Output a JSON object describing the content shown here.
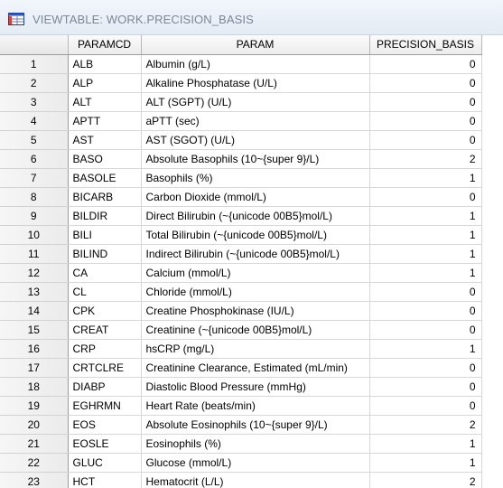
{
  "window": {
    "title": "VIEWTABLE: WORK.PRECISION_BASIS",
    "icon": "viewtable-grid-icon"
  },
  "table": {
    "columns": [
      "PARAMCD",
      "PARAM",
      "PRECISION_BASIS"
    ],
    "rows": [
      {
        "n": "1",
        "paramcd": "ALB",
        "param": "Albumin (g/L)",
        "basis": "0"
      },
      {
        "n": "2",
        "paramcd": "ALP",
        "param": "Alkaline Phosphatase (U/L)",
        "basis": "0"
      },
      {
        "n": "3",
        "paramcd": "ALT",
        "param": "ALT (SGPT) (U/L)",
        "basis": "0"
      },
      {
        "n": "4",
        "paramcd": "APTT",
        "param": "aPTT (sec)",
        "basis": "0"
      },
      {
        "n": "5",
        "paramcd": "AST",
        "param": "AST (SGOT) (U/L)",
        "basis": "0"
      },
      {
        "n": "6",
        "paramcd": "BASO",
        "param": "Absolute Basophils (10~{super 9}/L)",
        "basis": "2"
      },
      {
        "n": "7",
        "paramcd": "BASOLE",
        "param": "Basophils (%)",
        "basis": "1"
      },
      {
        "n": "8",
        "paramcd": "BICARB",
        "param": "Carbon Dioxide (mmol/L)",
        "basis": "0"
      },
      {
        "n": "9",
        "paramcd": "BILDIR",
        "param": "Direct Bilirubin (~{unicode 00B5}mol/L)",
        "basis": "1"
      },
      {
        "n": "10",
        "paramcd": "BILI",
        "param": "Total Bilirubin (~{unicode 00B5}mol/L)",
        "basis": "1"
      },
      {
        "n": "11",
        "paramcd": "BILIND",
        "param": "Indirect Bilirubin (~{unicode 00B5}mol/L)",
        "basis": "1"
      },
      {
        "n": "12",
        "paramcd": "CA",
        "param": "Calcium (mmol/L)",
        "basis": "1"
      },
      {
        "n": "13",
        "paramcd": "CL",
        "param": "Chloride (mmol/L)",
        "basis": "0"
      },
      {
        "n": "14",
        "paramcd": "CPK",
        "param": "Creatine Phosphokinase (IU/L)",
        "basis": "0"
      },
      {
        "n": "15",
        "paramcd": "CREAT",
        "param": "Creatinine (~{unicode 00B5}mol/L)",
        "basis": "0"
      },
      {
        "n": "16",
        "paramcd": "CRP",
        "param": "hsCRP (mg/L)",
        "basis": "1"
      },
      {
        "n": "17",
        "paramcd": "CRTCLRE",
        "param": "Creatinine Clearance, Estimated (mL/min)",
        "basis": "0"
      },
      {
        "n": "18",
        "paramcd": "DIABP",
        "param": "Diastolic Blood Pressure (mmHg)",
        "basis": "0"
      },
      {
        "n": "19",
        "paramcd": "EGHRMN",
        "param": "Heart Rate (beats/min)",
        "basis": "0"
      },
      {
        "n": "20",
        "paramcd": "EOS",
        "param": "Absolute Eosinophils (10~{super 9}/L)",
        "basis": "2"
      },
      {
        "n": "21",
        "paramcd": "EOSLE",
        "param": "Eosinophils (%)",
        "basis": "1"
      },
      {
        "n": "22",
        "paramcd": "GLUC",
        "param": "Glucose (mmol/L)",
        "basis": "1"
      },
      {
        "n": "23",
        "paramcd": "HCT",
        "param": "Hematocrit (L/L)",
        "basis": "2"
      }
    ]
  }
}
